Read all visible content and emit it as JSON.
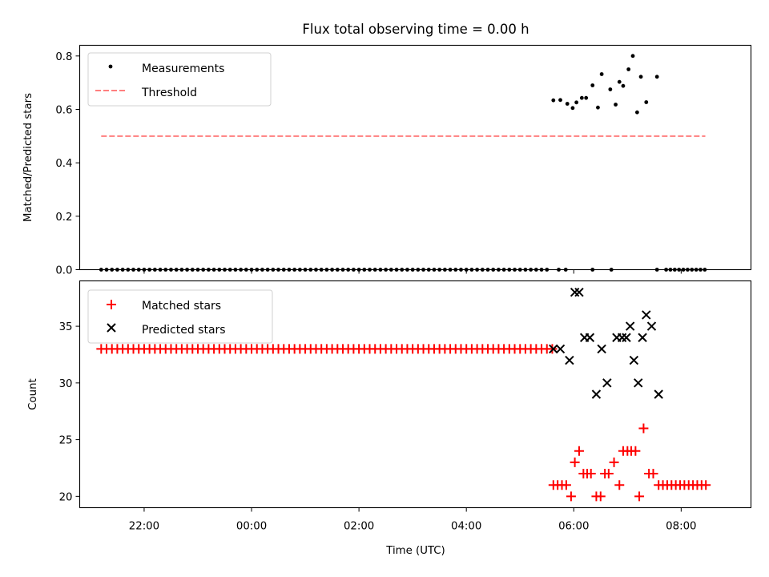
{
  "chart_data": {
    "title": "Flux total observing time = 0.00 h",
    "xlabel": "Time (UTC)",
    "x_unit": "hours relative to 00:00 UTC",
    "xlim": [
      -3.2,
      9.3
    ],
    "xticks": [
      {
        "value": -2,
        "label": "22:00"
      },
      {
        "value": 0,
        "label": "00:00"
      },
      {
        "value": 2,
        "label": "02:00"
      },
      {
        "value": 4,
        "label": "04:00"
      },
      {
        "value": 6,
        "label": "06:00"
      },
      {
        "value": 8,
        "label": "08:00"
      }
    ],
    "panels": [
      {
        "type": "scatter",
        "ylabel": "Matched/Predicted stars",
        "ylim": [
          0,
          0.84
        ],
        "yticks": [
          {
            "value": 0.0,
            "label": "0.0"
          },
          {
            "value": 0.2,
            "label": "0.2"
          },
          {
            "value": 0.4,
            "label": "0.4"
          },
          {
            "value": 0.6,
            "label": "0.6"
          },
          {
            "value": 0.8,
            "label": "0.8"
          }
        ],
        "legend": "top-left",
        "grid": false,
        "threshold": {
          "name": "Threshold",
          "value": 0.5,
          "x": [
            -2.8,
            8.45
          ],
          "color": "#ff7f7f"
        },
        "measurements": {
          "name": "Measurements",
          "color": "#000000",
          "zero_start": -2.8,
          "zero_end": 5.55,
          "zero_step": 0.1,
          "points": [
            [
              5.62,
              0.634
            ],
            [
              5.75,
              0.635
            ],
            [
              5.88,
              0.621
            ],
            [
              5.98,
              0.605
            ],
            [
              6.05,
              0.626
            ],
            [
              6.15,
              0.643
            ],
            [
              6.23,
              0.643
            ],
            [
              6.35,
              0.69
            ],
            [
              6.45,
              0.607
            ],
            [
              6.52,
              0.732
            ],
            [
              6.68,
              0.675
            ],
            [
              6.78,
              0.618
            ],
            [
              6.85,
              0.703
            ],
            [
              6.92,
              0.688
            ],
            [
              7.02,
              0.75
            ],
            [
              7.1,
              0.8
            ],
            [
              7.18,
              0.589
            ],
            [
              7.25,
              0.722
            ],
            [
              7.35,
              0.627
            ],
            [
              7.55,
              0.722
            ],
            [
              5.72,
              0.0
            ],
            [
              5.85,
              0.0
            ],
            [
              6.35,
              0.0
            ],
            [
              6.7,
              0.0
            ],
            [
              7.55,
              0.0
            ],
            [
              7.72,
              0.0
            ],
            [
              7.8,
              0.0
            ],
            [
              7.88,
              0.0
            ],
            [
              7.96,
              0.0
            ],
            [
              8.04,
              0.0
            ],
            [
              8.12,
              0.0
            ],
            [
              8.2,
              0.0
            ],
            [
              8.28,
              0.0
            ],
            [
              8.36,
              0.0
            ],
            [
              8.44,
              0.0
            ]
          ]
        }
      },
      {
        "type": "scatter",
        "ylabel": "Count",
        "ylim": [
          19,
          39
        ],
        "yticks": [
          {
            "value": 20,
            "label": "20"
          },
          {
            "value": 25,
            "label": "25"
          },
          {
            "value": 30,
            "label": "30"
          },
          {
            "value": 35,
            "label": "35"
          }
        ],
        "legend": "top-left",
        "grid": false,
        "matched": {
          "name": "Matched stars",
          "color": "#ff0000",
          "flat_start": -2.8,
          "flat_end": 5.62,
          "flat_step": 0.1,
          "flat_value": 33,
          "points": [
            [
              5.62,
              21
            ],
            [
              5.7,
              21
            ],
            [
              5.78,
              21
            ],
            [
              5.86,
              21
            ],
            [
              5.95,
              20
            ],
            [
              6.02,
              23
            ],
            [
              6.1,
              24
            ],
            [
              6.18,
              22
            ],
            [
              6.25,
              22
            ],
            [
              6.32,
              22
            ],
            [
              6.42,
              20
            ],
            [
              6.5,
              20
            ],
            [
              6.58,
              22
            ],
            [
              6.65,
              22
            ],
            [
              6.75,
              23
            ],
            [
              6.85,
              21
            ],
            [
              6.92,
              24
            ],
            [
              7.0,
              24
            ],
            [
              7.07,
              24
            ],
            [
              7.15,
              24
            ],
            [
              7.22,
              20
            ],
            [
              7.3,
              26
            ],
            [
              7.4,
              22
            ],
            [
              7.48,
              22
            ],
            [
              7.58,
              21
            ],
            [
              7.66,
              21
            ],
            [
              7.74,
              21
            ],
            [
              7.82,
              21
            ],
            [
              7.9,
              21
            ],
            [
              7.98,
              21
            ],
            [
              8.06,
              21
            ],
            [
              8.14,
              21
            ],
            [
              8.22,
              21
            ],
            [
              8.3,
              21
            ],
            [
              8.38,
              21
            ],
            [
              8.46,
              21
            ]
          ]
        },
        "predicted": {
          "name": "Predicted stars",
          "color": "#000000",
          "points": [
            [
              5.62,
              33
            ],
            [
              5.75,
              33
            ],
            [
              5.92,
              32
            ],
            [
              6.02,
              38
            ],
            [
              6.1,
              38
            ],
            [
              6.2,
              34
            ],
            [
              6.3,
              34
            ],
            [
              6.42,
              29
            ],
            [
              6.52,
              33
            ],
            [
              6.62,
              30
            ],
            [
              6.8,
              34
            ],
            [
              6.9,
              34
            ],
            [
              6.98,
              34
            ],
            [
              7.05,
              35
            ],
            [
              7.12,
              32
            ],
            [
              7.2,
              30
            ],
            [
              7.28,
              34
            ],
            [
              7.35,
              36
            ],
            [
              7.45,
              35
            ],
            [
              7.58,
              29
            ]
          ]
        }
      }
    ]
  }
}
